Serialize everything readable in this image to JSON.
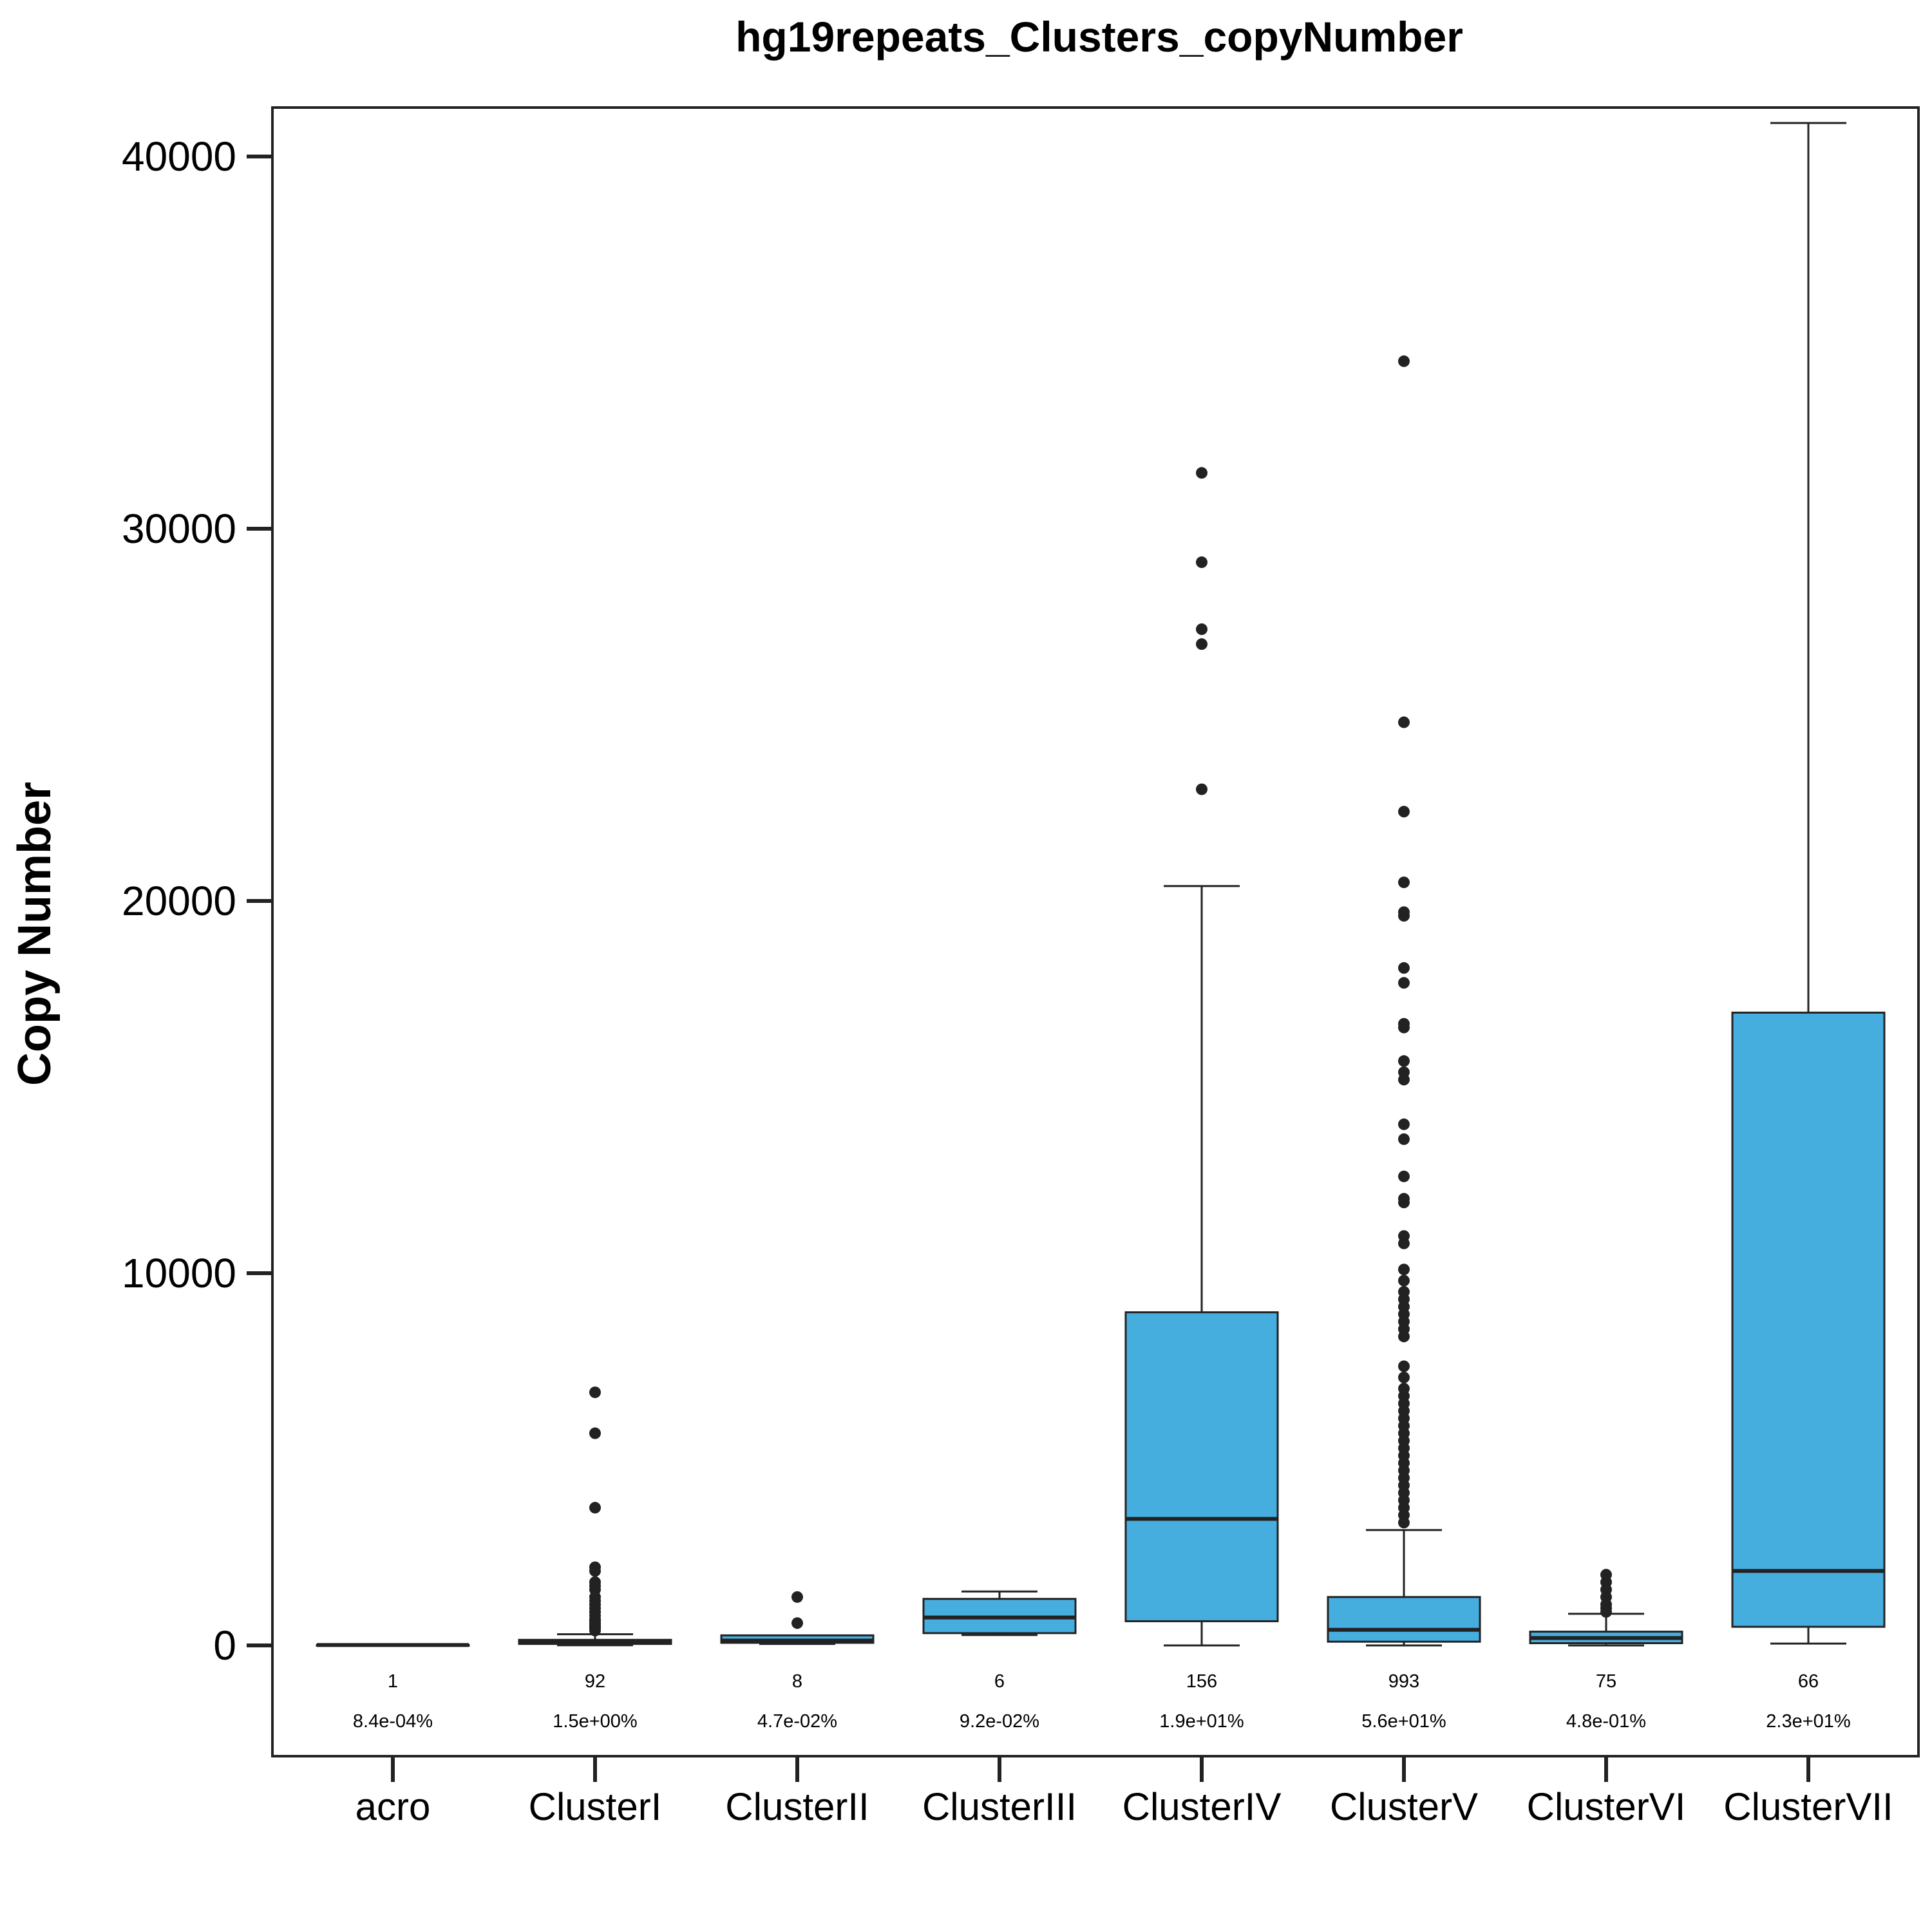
{
  "chart_data": {
    "type": "boxplot",
    "title": "hg19repeats_Clusters_copyNumber",
    "xlabel": "",
    "ylabel": "Copy Number",
    "ylim": [
      -2950,
      41300
    ],
    "yticks": [
      0,
      10000,
      20000,
      30000,
      40000
    ],
    "ytick_labels": [
      "0",
      "10000",
      "20000",
      "30000",
      "40000"
    ],
    "grid": false,
    "box_color": "#46AEDE",
    "line_color": "#222222",
    "categories": [
      "acro",
      "ClusterI",
      "ClusterII",
      "ClusterIII",
      "ClusterIV",
      "ClusterV",
      "ClusterVI",
      "ClusterVII"
    ],
    "counts": [
      "1",
      "92",
      "8",
      "6",
      "156",
      "993",
      "75",
      "66"
    ],
    "percents": [
      "8.4e-04%",
      "1.5e+00%",
      "4.7e-02%",
      "9.2e-02%",
      "1.9e+01%",
      "5.6e+01%",
      "4.8e-01%",
      "2.3e+01%"
    ],
    "boxes": [
      {
        "whisker_low": 10,
        "q1": 10,
        "median": 10,
        "q3": 10,
        "whisker_high": 10,
        "outliers": []
      },
      {
        "whisker_low": 5,
        "q1": 40,
        "median": 80,
        "q3": 150,
        "whisker_high": 300,
        "outliers": [
          6800,
          5700,
          3700,
          2100,
          2000,
          1700,
          1600,
          1500,
          1300,
          1200,
          1100,
          1000,
          900,
          800,
          700,
          650,
          600,
          550,
          500,
          450,
          400
        ]
      },
      {
        "whisker_low": 40,
        "q1": 70,
        "median": 130,
        "q3": 270,
        "whisker_high": 270,
        "outliers": [
          1300,
          600
        ]
      },
      {
        "whisker_low": 280,
        "q1": 330,
        "median": 750,
        "q3": 1250,
        "whisker_high": 1450,
        "outliers": []
      },
      {
        "whisker_low": 0,
        "q1": 650,
        "median": 3400,
        "q3": 8950,
        "whisker_high": 20400,
        "outliers": [
          31500,
          29100,
          27300,
          26900,
          23000
        ]
      },
      {
        "whisker_low": 0,
        "q1": 100,
        "median": 420,
        "q3": 1300,
        "whisker_high": 3100,
        "outliers": [
          34500,
          24800,
          22400,
          20500,
          19700,
          19600,
          18200,
          17800,
          16700,
          16600,
          15700,
          15400,
          15200,
          14000,
          13600,
          12600,
          12000,
          11900,
          11000,
          10800,
          10100,
          9800,
          9500,
          9300,
          9100,
          8900,
          8700,
          8500,
          8300,
          7500,
          7200,
          6900,
          6700,
          6500,
          6300,
          6100,
          5900,
          5700,
          5500,
          5300,
          5100,
          4900,
          4700,
          4500,
          4300,
          4100,
          3900,
          3700,
          3500,
          3300
        ]
      },
      {
        "whisker_low": 0,
        "q1": 60,
        "median": 200,
        "q3": 370,
        "whisker_high": 850,
        "outliers": [
          1900,
          1700,
          1500,
          1300,
          1100,
          1000,
          900
        ]
      },
      {
        "whisker_low": 50,
        "q1": 500,
        "median": 2000,
        "q3": 17000,
        "whisker_high": 40900,
        "outliers": []
      }
    ]
  }
}
